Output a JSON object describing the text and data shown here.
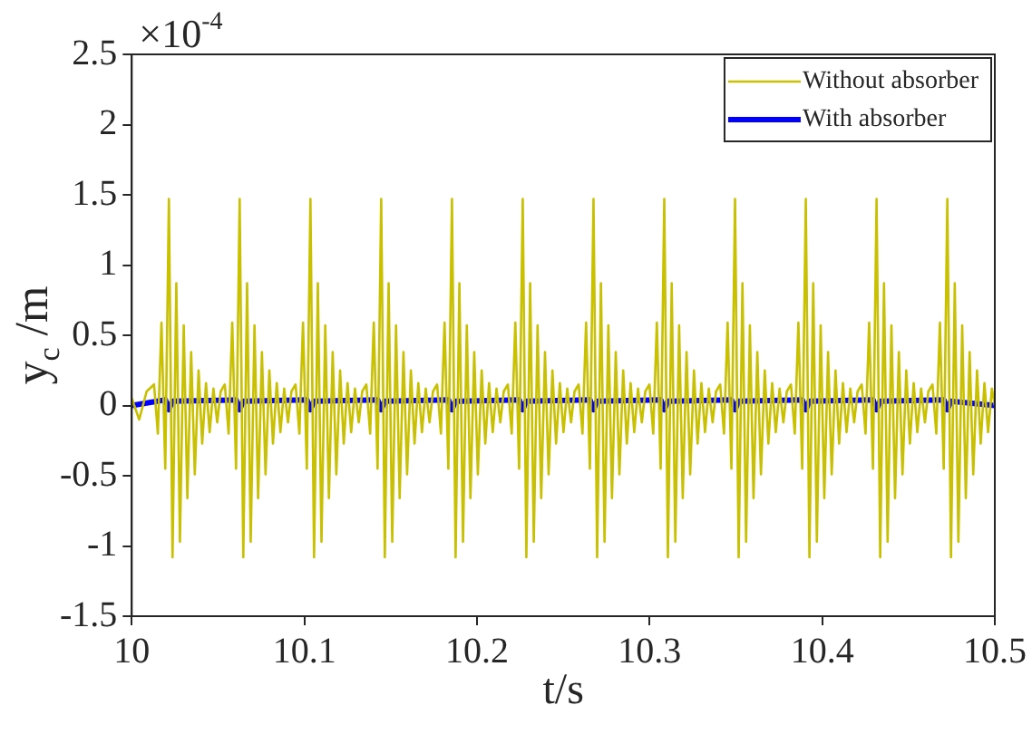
{
  "chart_data": {
    "type": "line",
    "xlabel": "t/s",
    "ylabel": "y$_{c}$ /m",
    "annotations": [
      "×10$^{-4}$"
    ],
    "xlim": [
      10,
      10.5
    ],
    "xticks": [
      10,
      10.1,
      10.2,
      10.3,
      10.4,
      10.5
    ],
    "ylim": [
      -1.5,
      2.5
    ],
    "yticks": [
      -1.5,
      -1,
      -0.5,
      0,
      0.5,
      1,
      1.5,
      2,
      2.5
    ],
    "grid": false,
    "legend": "top right",
    "marker": "none",
    "line_style": "solid",
    "series": [
      {
        "name": "Without absorber",
        "color": "#c8c000",
        "x": [
          10,
          10.0043,
          10.0086,
          10.0129,
          10.0151,
          10.0172,
          10.0194,
          10.0215,
          10.0236,
          10.0258,
          10.0279,
          10.0301,
          10.0322,
          10.0344,
          10.0365,
          10.0387,
          10.0408,
          10.043,
          10.0451,
          10.0473,
          10.0495,
          10.0515,
          10.0539,
          10.0561,
          10.0582,
          10.0604,
          10.0625,
          10.0646,
          10.0668,
          10.0689,
          10.0711,
          10.0732,
          10.0754,
          10.0775,
          10.0797,
          10.0818,
          10.084,
          10.0861,
          10.0883,
          10.0905,
          10.0925,
          10.0949,
          10.0971,
          10.0992,
          10.1014,
          10.1035,
          10.1056,
          10.1078,
          10.1099,
          10.1121,
          10.1142,
          10.1164,
          10.1185,
          10.1207,
          10.1228,
          10.125,
          10.1271,
          10.1293,
          10.1315,
          10.1335,
          10.1359,
          10.1381,
          10.1402,
          10.1424,
          10.1445,
          10.1466,
          10.1488,
          10.1509,
          10.1531,
          10.1552,
          10.1574,
          10.1595,
          10.1617,
          10.1638,
          10.166,
          10.1681,
          10.1703,
          10.1725,
          10.1745,
          10.1769,
          10.1791,
          10.1812,
          10.1834,
          10.1855,
          10.1876,
          10.1898,
          10.1919,
          10.1941,
          10.1962,
          10.1984,
          10.2005,
          10.2027,
          10.2048,
          10.207,
          10.2091,
          10.2113,
          10.2135,
          10.2155,
          10.2179,
          10.2201,
          10.2222,
          10.2244,
          10.2265,
          10.2286,
          10.2308,
          10.2329,
          10.2351,
          10.2372,
          10.2394,
          10.2415,
          10.2437,
          10.2458,
          10.248,
          10.2501,
          10.2523,
          10.2545,
          10.2565,
          10.2589,
          10.2611,
          10.2632,
          10.2654,
          10.2675,
          10.2696,
          10.2718,
          10.2739,
          10.2761,
          10.2782,
          10.2804,
          10.2825,
          10.2847,
          10.2868,
          10.289,
          10.2911,
          10.2933,
          10.2955,
          10.2975,
          10.2999,
          10.3021,
          10.3042,
          10.3064,
          10.3085,
          10.3106,
          10.3128,
          10.3149,
          10.3171,
          10.3192,
          10.3214,
          10.3235,
          10.3257,
          10.3278,
          10.33,
          10.3321,
          10.3343,
          10.3365,
          10.3385,
          10.3409,
          10.3431,
          10.3452,
          10.3474,
          10.3495,
          10.3516,
          10.3538,
          10.3559,
          10.3581,
          10.3602,
          10.3624,
          10.3645,
          10.3667,
          10.3688,
          10.371,
          10.3731,
          10.3753,
          10.3775,
          10.3795,
          10.3819,
          10.3841,
          10.3862,
          10.3884,
          10.3905,
          10.3926,
          10.3948,
          10.3969,
          10.3991,
          10.4012,
          10.4034,
          10.4055,
          10.4077,
          10.4098,
          10.412,
          10.4141,
          10.4163,
          10.4185,
          10.4205,
          10.4229,
          10.4251,
          10.4272,
          10.4294,
          10.4315,
          10.4336,
          10.4358,
          10.4379,
          10.4401,
          10.4422,
          10.4444,
          10.4465,
          10.4487,
          10.4508,
          10.453,
          10.4551,
          10.4573,
          10.4595,
          10.4615,
          10.4639,
          10.4661,
          10.4682,
          10.4704,
          10.4725,
          10.4746,
          10.4768,
          10.4789,
          10.4811,
          10.4832,
          10.4854,
          10.4875,
          10.4897,
          10.4918,
          10.494,
          10.4961,
          10.4983,
          10.5
        ],
        "values": [
          0.05,
          -0.1,
          0.1,
          0.15,
          -0.2,
          0.59,
          -0.45,
          1.47,
          -1.08,
          0.87,
          -0.97,
          0.57,
          -0.66,
          0.38,
          -0.49,
          0.25,
          -0.27,
          0.16,
          -0.19,
          0.12,
          -0.12,
          0.1,
          0.15,
          -0.2,
          0.59,
          -0.45,
          1.47,
          -1.08,
          0.87,
          -0.97,
          0.57,
          -0.66,
          0.38,
          -0.49,
          0.25,
          -0.27,
          0.16,
          -0.19,
          0.12,
          -0.12,
          0.1,
          0.15,
          -0.2,
          0.59,
          -0.45,
          1.47,
          -1.08,
          0.87,
          -0.97,
          0.57,
          -0.66,
          0.38,
          -0.49,
          0.25,
          -0.27,
          0.16,
          -0.19,
          0.12,
          -0.12,
          0.1,
          0.15,
          -0.2,
          0.59,
          -0.45,
          1.47,
          -1.08,
          0.87,
          -0.97,
          0.57,
          -0.66,
          0.38,
          -0.49,
          0.25,
          -0.27,
          0.16,
          -0.19,
          0.12,
          -0.12,
          0.1,
          0.15,
          -0.2,
          0.59,
          -0.45,
          1.47,
          -1.08,
          0.87,
          -0.97,
          0.57,
          -0.66,
          0.38,
          -0.49,
          0.25,
          -0.27,
          0.16,
          -0.19,
          0.12,
          -0.12,
          0.1,
          0.15,
          -0.2,
          0.59,
          -0.45,
          1.47,
          -1.08,
          0.87,
          -0.97,
          0.57,
          -0.66,
          0.38,
          -0.49,
          0.25,
          -0.27,
          0.16,
          -0.19,
          0.12,
          -0.12,
          0.1,
          0.15,
          -0.2,
          0.59,
          -0.45,
          1.47,
          -1.08,
          0.87,
          -0.97,
          0.57,
          -0.66,
          0.38,
          -0.49,
          0.25,
          -0.27,
          0.16,
          -0.19,
          0.12,
          -0.12,
          0.1,
          0.15,
          -0.2,
          0.59,
          -0.45,
          1.47,
          -1.08,
          0.87,
          -0.97,
          0.57,
          -0.66,
          0.38,
          -0.49,
          0.25,
          -0.27,
          0.16,
          -0.19,
          0.12,
          -0.12,
          0.1,
          0.15,
          -0.2,
          0.59,
          -0.45,
          1.47,
          -1.08,
          0.87,
          -0.97,
          0.57,
          -0.66,
          0.38,
          -0.49,
          0.25,
          -0.27,
          0.16,
          -0.19,
          0.12,
          -0.12,
          0.1,
          0.15,
          -0.2,
          0.59,
          -0.45,
          1.47,
          -1.08,
          0.87,
          -0.97,
          0.57,
          -0.66,
          0.38,
          -0.49,
          0.25,
          -0.27,
          0.16,
          -0.19,
          0.12,
          -0.12,
          0.1,
          0.15,
          -0.2,
          0.59,
          -0.45,
          1.47,
          -1.08,
          0.87,
          -0.97,
          0.57,
          -0.66,
          0.38,
          -0.49,
          0.25,
          -0.27,
          0.16,
          -0.19,
          0.12,
          -0.12,
          0.1,
          0.15,
          -0.2,
          0.59,
          -0.45,
          1.47,
          -1.08,
          0.87,
          -0.97,
          0.57,
          -0.66,
          0.38,
          -0.49,
          0.25,
          -0.27,
          0.16,
          -0.19,
          0.12,
          0
        ]
      },
      {
        "name": "With absorber",
        "color": "#0000ff",
        "x": [
          10,
          10.0195,
          10.0215,
          10.0235,
          10.0605,
          10.0625,
          10.0645,
          10.1015,
          10.1035,
          10.1055,
          10.1425,
          10.1445,
          10.1465,
          10.1835,
          10.1855,
          10.1875,
          10.2245,
          10.2265,
          10.2285,
          10.2655,
          10.2675,
          10.2695,
          10.3065,
          10.3085,
          10.3105,
          10.3475,
          10.3495,
          10.3515,
          10.3885,
          10.3905,
          10.3925,
          10.4295,
          10.4315,
          10.4335,
          10.4705,
          10.4725,
          10.4745,
          10.5
        ],
        "values": [
          0,
          0.04,
          -0.03,
          0.03,
          0.04,
          -0.03,
          0.03,
          0.04,
          -0.03,
          0.03,
          0.04,
          -0.03,
          0.03,
          0.04,
          -0.03,
          0.03,
          0.04,
          -0.03,
          0.03,
          0.04,
          -0.03,
          0.03,
          0.04,
          -0.03,
          0.03,
          0.04,
          -0.03,
          0.03,
          0.04,
          -0.03,
          0.03,
          0.04,
          -0.03,
          0.03,
          0.04,
          -0.03,
          0.03,
          0
        ]
      }
    ]
  }
}
